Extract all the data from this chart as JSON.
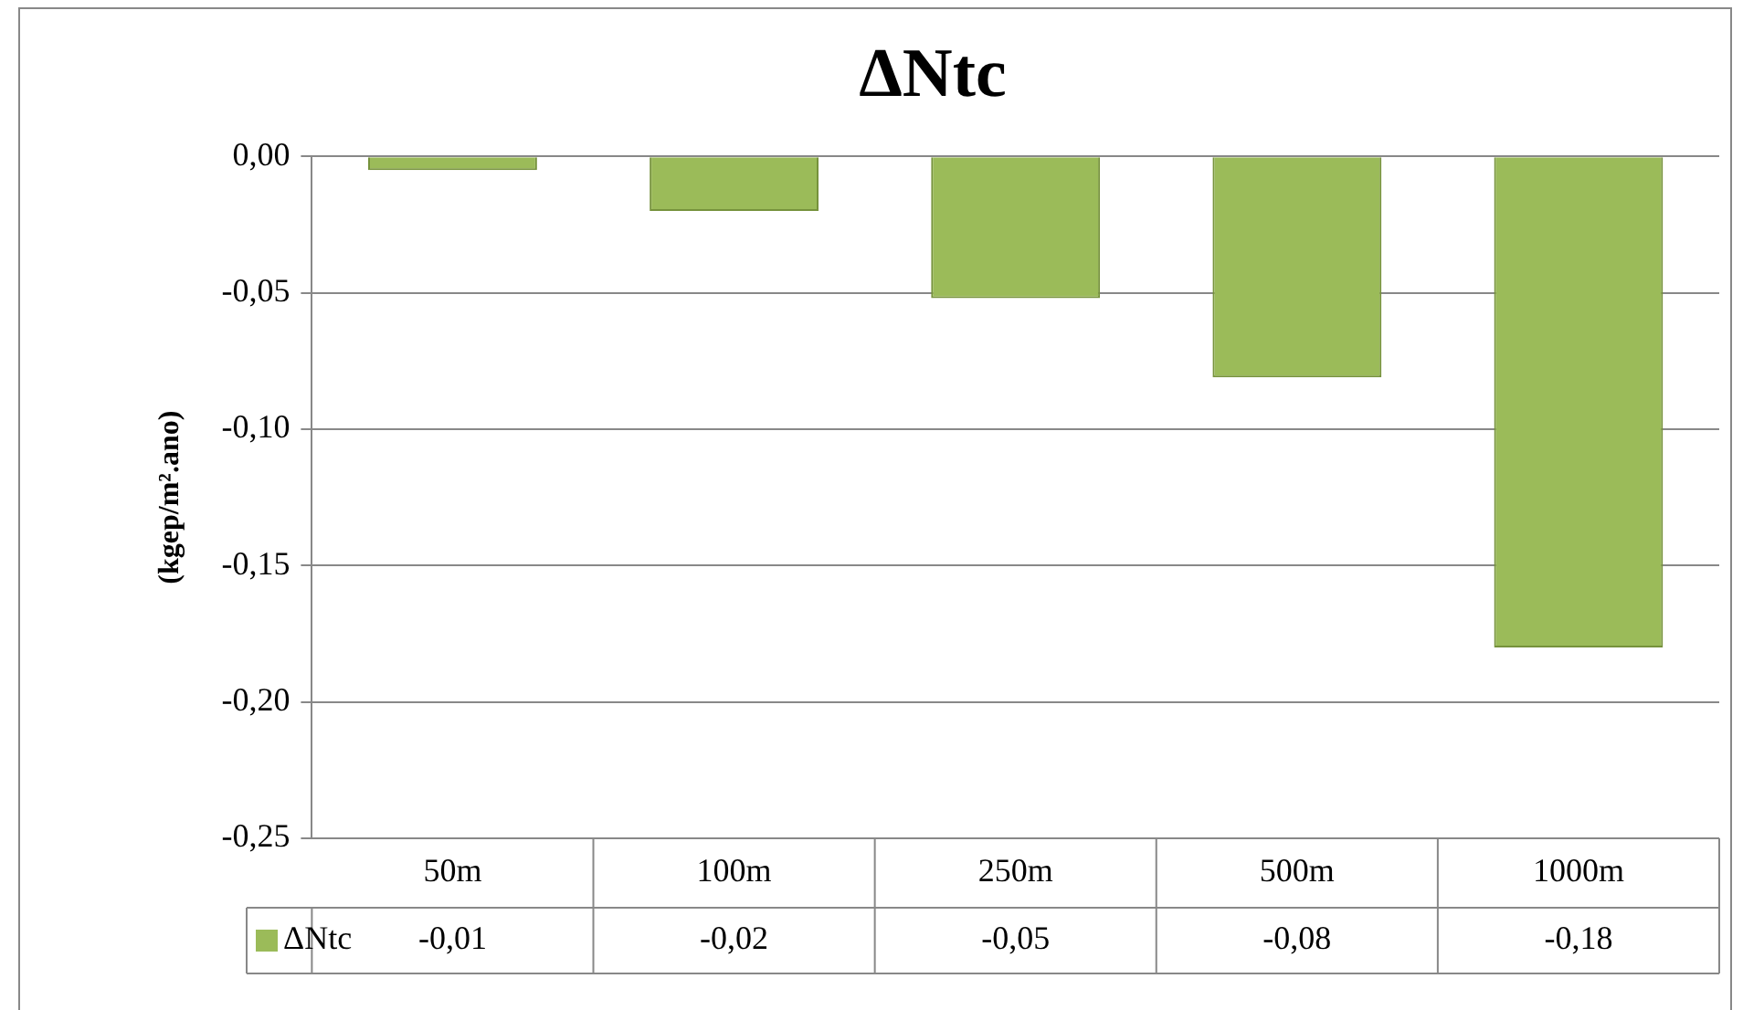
{
  "chart_data": {
    "type": "bar",
    "title": "ΔNtc",
    "ylabel": "(kgep/m².ano)",
    "categories": [
      "50m",
      "100m",
      "250m",
      "500m",
      "1000m"
    ],
    "series": [
      {
        "name": "ΔNtc",
        "color": "#9bbb59",
        "values": [
          -0.005,
          -0.02,
          -0.052,
          -0.081,
          -0.18
        ],
        "value_labels": [
          "-0,01",
          "-0,02",
          "-0,05",
          "-0,08",
          "-0,18"
        ]
      }
    ],
    "ylim": [
      -0.25,
      0
    ],
    "yticks": [
      {
        "value": 0,
        "label": "0,00"
      },
      {
        "value": -0.05,
        "label": "-0,05"
      },
      {
        "value": -0.1,
        "label": "-0,10"
      },
      {
        "value": -0.15,
        "label": "-0,15"
      },
      {
        "value": -0.2,
        "label": "-0,20"
      },
      {
        "value": -0.25,
        "label": "-0,25"
      }
    ],
    "grid": "y",
    "legend": "bottom left"
  }
}
